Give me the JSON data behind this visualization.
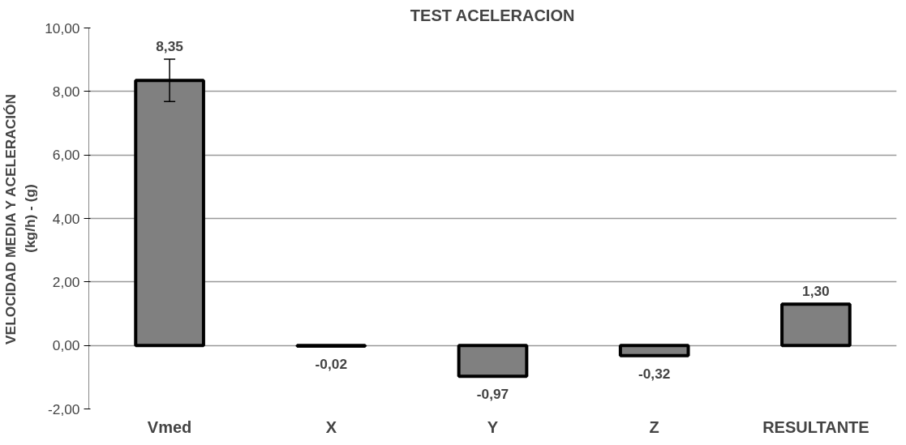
{
  "chart_data": {
    "type": "bar",
    "title": "TEST ACELERACION",
    "ylabel": "VELOCIDAD MEDIA Y ACELERACIÓN\n(kg/h) - (g)",
    "categories": [
      "Vmed",
      "X",
      "Y",
      "Z",
      "RESULTANTE"
    ],
    "values": [
      8.35,
      -0.02,
      -0.97,
      -0.32,
      1.3
    ],
    "value_labels": [
      "8,35",
      "-0,02",
      "-0,97",
      "-0,32",
      "1,30"
    ],
    "errors": [
      0.67,
      null,
      null,
      null,
      null
    ],
    "color": "#808080",
    "ylim": [
      -2,
      10
    ],
    "yticks": [
      {
        "value": -2,
        "label": "-2,00"
      },
      {
        "value": 0,
        "label": "0,00"
      },
      {
        "value": 2,
        "label": "2,00"
      },
      {
        "value": 4,
        "label": "4,00"
      },
      {
        "value": 6,
        "label": "6,00"
      },
      {
        "value": 8,
        "label": "8,00"
      },
      {
        "value": 10,
        "label": "10,00"
      }
    ],
    "grid": "y"
  }
}
